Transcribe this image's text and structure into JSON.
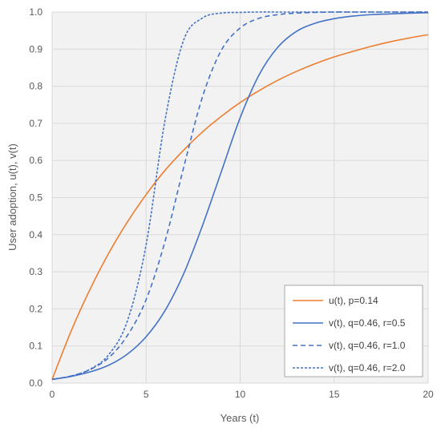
{
  "chart_data": {
    "type": "line",
    "title": "",
    "xlabel": "Years (t)",
    "ylabel": "User adoption, u(t), v(t)",
    "xlim": [
      0,
      20
    ],
    "ylim": [
      0,
      1
    ],
    "x_ticks": [
      "0",
      "5",
      "10",
      "15",
      "20"
    ],
    "y_ticks": [
      "0.0",
      "0.1",
      "0.2",
      "0.3",
      "0.4",
      "0.5",
      "0.6",
      "0.7",
      "0.8",
      "0.9",
      "1.0"
    ],
    "grid": true,
    "legend_position": "bottom-right",
    "x": [
      0,
      1,
      2,
      3,
      4,
      5,
      6,
      7,
      8,
      9,
      10,
      11,
      12,
      13,
      14,
      15,
      16,
      17,
      18,
      19,
      20
    ],
    "series": [
      {
        "name": "u(t), p=0.14",
        "color": "#ED7D31",
        "style": "solid",
        "values": [
          0.01,
          0.139,
          0.251,
          0.349,
          0.434,
          0.508,
          0.573,
          0.628,
          0.677,
          0.719,
          0.756,
          0.788,
          0.816,
          0.84,
          0.861,
          0.879,
          0.894,
          0.908,
          0.92,
          0.93,
          0.939
        ]
      },
      {
        "name": "v(t), q=0.46, r=0.5",
        "color": "#4472C4",
        "style": "solid",
        "values": [
          0.01,
          0.018,
          0.03,
          0.048,
          0.078,
          0.125,
          0.195,
          0.295,
          0.425,
          0.57,
          0.715,
          0.83,
          0.905,
          0.948,
          0.97,
          0.982,
          0.989,
          0.993,
          0.995,
          0.997,
          0.998
        ]
      },
      {
        "name": "v(t), q=0.46, r=1.0",
        "color": "#4472C4",
        "style": "dash",
        "values": [
          0.01,
          0.019,
          0.036,
          0.068,
          0.128,
          0.225,
          0.381,
          0.582,
          0.772,
          0.897,
          0.957,
          0.983,
          0.993,
          0.997,
          0.999,
          1.0,
          1.0,
          1.0,
          1.0,
          1.0,
          1.0
        ]
      },
      {
        "name": "v(t), q=0.46, r=2.0",
        "color": "#4472C4",
        "style": "dot",
        "values": [
          0.01,
          0.019,
          0.037,
          0.076,
          0.167,
          0.373,
          0.707,
          0.925,
          0.984,
          0.997,
          0.999,
          1.0,
          1.0,
          1.0,
          1.0,
          1.0,
          1.0,
          1.0,
          1.0,
          1.0,
          1.0
        ]
      }
    ]
  }
}
